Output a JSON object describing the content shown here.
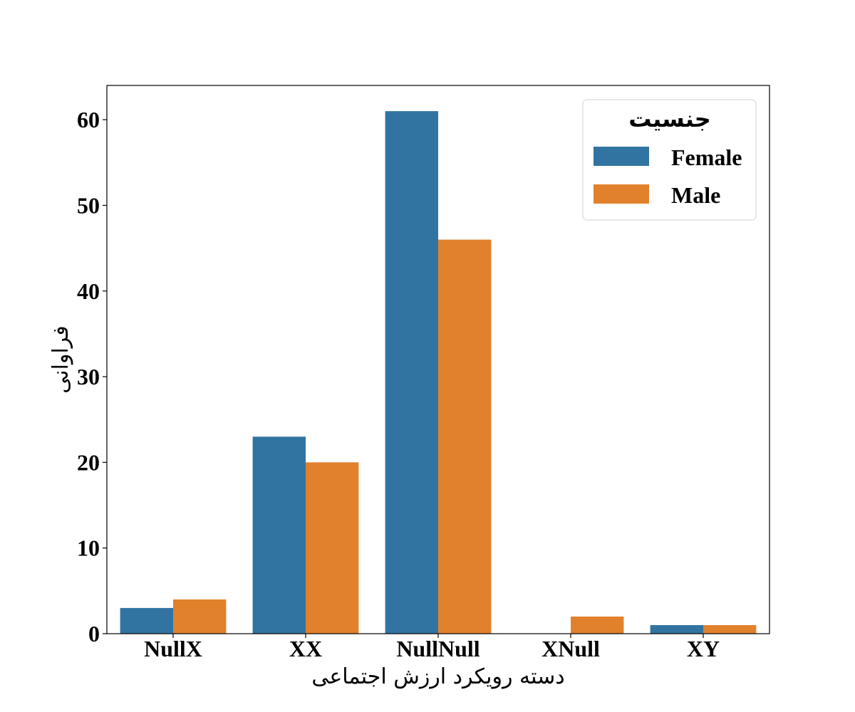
{
  "chart_data": {
    "type": "bar",
    "title": "",
    "xlabel": "دسته رویکرد ارزش اجتماعی",
    "ylabel": "فراوانی",
    "categories": [
      "NullX",
      "XX",
      "NullNull",
      "XNull",
      "XY"
    ],
    "series": [
      {
        "name": "Female",
        "color": "#3274a1",
        "values": [
          3,
          23,
          61,
          0,
          1
        ]
      },
      {
        "name": "Male",
        "color": "#e1812c",
        "values": [
          4,
          20,
          46,
          2,
          1
        ]
      }
    ],
    "ylim": [
      0,
      64
    ],
    "yticks": [
      0,
      10,
      20,
      30,
      40,
      50,
      60
    ],
    "grid": false,
    "legend": {
      "title": "جنسیت",
      "placement": "top-right"
    }
  }
}
